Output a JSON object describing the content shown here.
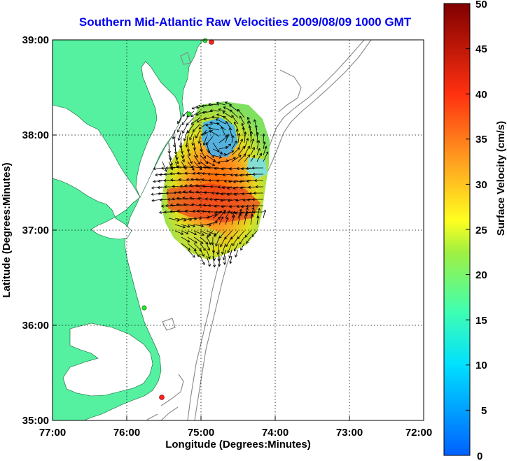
{
  "title": "Southern Mid-Atlantic Raw Velocities 2009/08/09 1000 GMT",
  "x_axis": {
    "label": "Longitude (Degrees:Minutes)",
    "ticks": [
      "77:00",
      "76:00",
      "75:00",
      "74:00",
      "73:00",
      "72:00"
    ]
  },
  "y_axis": {
    "label": "Latitude (Degrees:Minutes)",
    "ticks": [
      "39:00",
      "38:00",
      "37:00",
      "36:00",
      "35:00"
    ]
  },
  "colorbar": {
    "label": "Surface Velocity (cm/s)",
    "ticks": [
      "50",
      "45",
      "40",
      "35",
      "30",
      "25",
      "20",
      "15",
      "10",
      "5",
      "0"
    ],
    "min": 0,
    "max": 50,
    "colors": [
      "#0000ff",
      "#00ffff",
      "#ffff00",
      "#ff8000",
      "#ff0000",
      "#800000"
    ]
  },
  "map": {
    "land_color": "#55f0a0",
    "grid": "dotted",
    "extent": {
      "lon": [
        -77,
        -72
      ],
      "lat": [
        35,
        39
      ]
    }
  }
}
